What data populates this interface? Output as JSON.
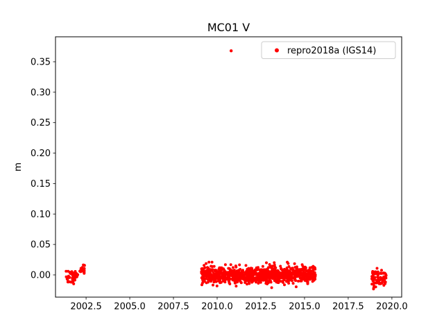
{
  "chart_data": {
    "type": "scatter",
    "title": "MC01 V",
    "xlabel": "",
    "ylabel": "m",
    "xlim": [
      2000.75,
      2020.56
    ],
    "ylim": [
      -0.0365,
      0.391
    ],
    "xticks": [
      2002.5,
      2005.0,
      2007.5,
      2010.0,
      2012.5,
      2015.0,
      2017.5,
      2020.0
    ],
    "xtick_labels": [
      "2002.5",
      "2005.0",
      "2007.5",
      "2010.0",
      "2012.5",
      "2015.0",
      "2017.5",
      "2020.0"
    ],
    "yticks": [
      0.0,
      0.05,
      0.1,
      0.15,
      0.2,
      0.25,
      0.3,
      0.35
    ],
    "ytick_labels": [
      "0.00",
      "0.05",
      "0.10",
      "0.15",
      "0.20",
      "0.25",
      "0.30",
      "0.35"
    ],
    "grid": false,
    "legend_position": "upper right",
    "series": [
      {
        "name": "repro2018a (IGS14)",
        "color": "#ff0000",
        "marker": "dot",
        "clusters": [
          {
            "x_min": 2001.35,
            "x_max": 2002.05,
            "y_mean": -0.004,
            "y_sd": 0.005,
            "y_min": -0.016,
            "y_max": 0.006,
            "n": 60
          },
          {
            "x_min": 2002.1,
            "x_max": 2002.42,
            "y_mean": 0.009,
            "y_sd": 0.004,
            "y_min": 0.0,
            "y_max": 0.017,
            "n": 25
          },
          {
            "x_min": 2009.1,
            "x_max": 2015.65,
            "y_mean": 0.0,
            "y_sd": 0.0065,
            "y_min": -0.021,
            "y_max": 0.021,
            "n": 1100
          },
          {
            "x_min": 2018.85,
            "x_max": 2019.69,
            "y_mean": -0.006,
            "y_sd": 0.007,
            "y_min": -0.023,
            "y_max": 0.012,
            "n": 75
          }
        ],
        "outlier_points": [
          [
            2010.8,
            0.368
          ]
        ]
      }
    ]
  }
}
